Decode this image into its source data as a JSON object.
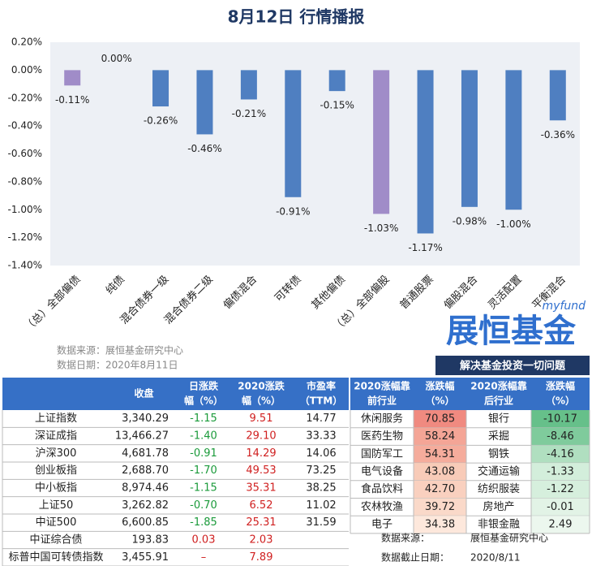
{
  "title": "8月12日  行情播报",
  "chart_data": {
    "type": "bar",
    "categories": [
      "（总）全部偏债",
      "纯债",
      "混合债券一级",
      "混合债券二级",
      "偏债混合",
      "可转债",
      "其他偏债",
      "（总）全部偏股",
      "普通股票",
      "偏股混合",
      "灵活配置",
      "平衡混合"
    ],
    "values": [
      -0.11,
      0,
      -0.26,
      -0.46,
      -0.21,
      -0.91,
      -0.15,
      -1.03,
      -1.17,
      -0.98,
      -1.0,
      -0.36
    ],
    "value_labels": [
      "-0.11%",
      "0.00%",
      "-0.26%",
      "-0.46%",
      "-0.21%",
      "-0.91%",
      "-0.15%",
      "-1.03%",
      "-1.17%",
      "-0.98%",
      "-1.00%",
      "-0.36%"
    ],
    "colors": [
      "#a08cc8",
      "#4f7fc1",
      "#4f7fc1",
      "#4f7fc1",
      "#4f7fc1",
      "#4f7fc1",
      "#4f7fc1",
      "#a08cc8",
      "#4f7fc1",
      "#4f7fc1",
      "#4f7fc1",
      "#4f7fc1"
    ],
    "ylim": [
      -1.4,
      0.2
    ],
    "yticks": [
      {
        "value": 0.2,
        "label": "0.20%"
      },
      {
        "value": 0,
        "label": "0.00%"
      },
      {
        "value": -0.2,
        "label": "-0.20%"
      },
      {
        "value": -0.4,
        "label": "-0.40%"
      },
      {
        "value": -0.6,
        "label": "-0.60%"
      },
      {
        "value": -0.8,
        "label": "-0.80%"
      },
      {
        "value": -1,
        "label": "-1.00%"
      },
      {
        "value": -1.2,
        "label": "-1.20%"
      },
      {
        "value": -1.4,
        "label": "-1.40%"
      }
    ],
    "grid": false
  },
  "source": [
    "数据来源：展恒基金研究中心",
    "数据日期：2020年8月11日"
  ],
  "logo": {
    "brand": "myfund",
    "name": "展恒基金",
    "slogan": "解决基金投资一切问题"
  },
  "index_table": {
    "headers": [
      [
        "收盘"
      ],
      [
        "日涨跌",
        "幅（%）"
      ],
      [
        "2020涨跌",
        "幅（%）"
      ],
      [
        "市盈率",
        "（TTM）"
      ]
    ],
    "rows": [
      [
        "上证指数",
        "3,340.29",
        "-1.15",
        "9.51",
        "14.77"
      ],
      [
        "深证成指",
        "13,466.27",
        "-1.40",
        "29.10",
        "33.33"
      ],
      [
        "沪深300",
        "4,681.78",
        "-0.91",
        "14.29",
        "14.06"
      ],
      [
        "创业板指",
        "2,688.70",
        "-1.70",
        "49.53",
        "73.25"
      ],
      [
        "中小板指",
        "8,974.46",
        "-1.15",
        "35.31",
        "38.25"
      ],
      [
        "上证50",
        "3,262.82",
        "-0.70",
        "6.52",
        "11.02"
      ],
      [
        "中证500",
        "6,600.85",
        "-1.85",
        "25.31",
        "31.59"
      ],
      [
        "中证综合债",
        "193.83",
        "0.03",
        "2.03",
        null
      ],
      [
        "标普中国可转债指数",
        "3,455.91",
        "–",
        "7.89",
        null
      ]
    ]
  },
  "industry_table": {
    "headers": [
      [
        "2020涨幅靠",
        "前行业"
      ],
      [
        "涨跌幅",
        "（%）"
      ],
      [
        "2020涨幅靠",
        "后行业"
      ],
      [
        "涨跌幅",
        "（%）"
      ]
    ],
    "rows": [
      [
        "休闲服务",
        "70.85",
        "银行",
        "-10.17"
      ],
      [
        "医药生物",
        "58.24",
        "采掘",
        "-8.46"
      ],
      [
        "国防军工",
        "54.31",
        "钢铁",
        "-4.16"
      ],
      [
        "电气设备",
        "43.08",
        "交通运输",
        "-1.33"
      ],
      [
        "食品饮料",
        "42.70",
        "纺织服装",
        "-1.22"
      ],
      [
        "农林牧渔",
        "39.72",
        "房地产",
        "-0.01"
      ],
      [
        "电子",
        "34.38",
        "非银金融",
        "2.49"
      ]
    ],
    "top_colors": [
      "#f08a80",
      "#f4a596",
      "#f5ac9c",
      "#f8cbb8",
      "#f9d0bf",
      "#fad9c9",
      "#fde8dc"
    ],
    "bottom_colors": [
      "#66c08a",
      "#7fcb9c",
      "#b0dfc0",
      "#d3eedb",
      "#d6efdd",
      "#e2f3e6",
      "#ecf7ee"
    ]
  },
  "footer": [
    [
      "数据来源：",
      "展恒基金研究中心"
    ],
    [
      "数据截止日期：",
      "2020/8/11"
    ]
  ]
}
